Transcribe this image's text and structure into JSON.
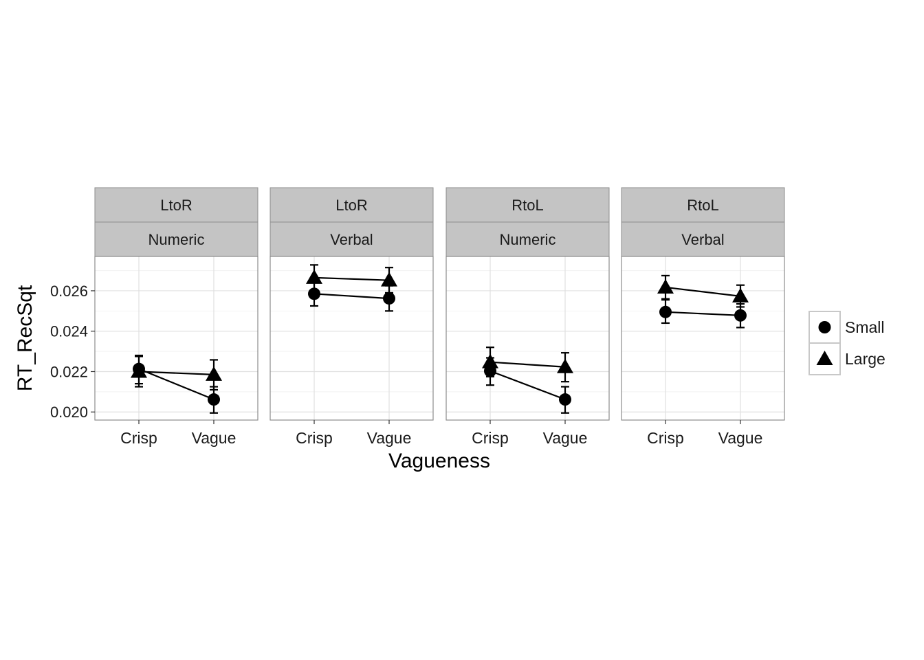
{
  "chart_data": {
    "type": "line",
    "xlabel": "Vagueness",
    "ylabel": "RT_RecSqt",
    "x_categories": [
      "Crisp",
      "Vague"
    ],
    "ylim": [
      0.0196,
      0.0277
    ],
    "y_ticks": [
      0.02,
      0.022,
      0.024,
      0.026
    ],
    "y_tick_labels": [
      "0.020",
      "0.022",
      "0.024",
      "0.026"
    ],
    "grid": true,
    "legend": {
      "position": "right",
      "entries": [
        {
          "name": "Small",
          "shape": "circle"
        },
        {
          "name": "Large",
          "shape": "triangle"
        }
      ]
    },
    "panels": [
      {
        "strip_top": "LtoR",
        "strip_bottom": "Numeric",
        "series": [
          {
            "name": "Small",
            "values": [
              0.02213,
              0.02062
            ],
            "err_low": [
              0.0214,
              0.01995
            ],
            "err_high": [
              0.02275,
              0.02125
            ]
          },
          {
            "name": "Large",
            "values": [
              0.022,
              0.02185
            ],
            "err_low": [
              0.02125,
              0.0211
            ],
            "err_high": [
              0.0228,
              0.02258
            ]
          }
        ]
      },
      {
        "strip_top": "LtoR",
        "strip_bottom": "Verbal",
        "series": [
          {
            "name": "Small",
            "values": [
              0.02585,
              0.02562
            ],
            "err_low": [
              0.02525,
              0.025
            ],
            "err_high": [
              0.0265,
              0.02625
            ]
          },
          {
            "name": "Large",
            "values": [
              0.02665,
              0.02652
            ],
            "err_low": [
              0.026,
              0.0259
            ],
            "err_high": [
              0.02728,
              0.02715
            ]
          }
        ]
      },
      {
        "strip_top": "RtoL",
        "strip_bottom": "Numeric",
        "series": [
          {
            "name": "Small",
            "values": [
              0.02203,
              0.02062
            ],
            "err_low": [
              0.02133,
              0.01995
            ],
            "err_high": [
              0.02268,
              0.02125
            ]
          },
          {
            "name": "Large",
            "values": [
              0.02247,
              0.02223
            ],
            "err_low": [
              0.02175,
              0.0215
            ],
            "err_high": [
              0.0232,
              0.02293
            ]
          }
        ]
      },
      {
        "strip_top": "RtoL",
        "strip_bottom": "Verbal",
        "series": [
          {
            "name": "Small",
            "values": [
              0.02495,
              0.02478
            ],
            "err_low": [
              0.0244,
              0.02418
            ],
            "err_high": [
              0.02555,
              0.02535
            ]
          },
          {
            "name": "Large",
            "values": [
              0.02617,
              0.02573
            ],
            "err_low": [
              0.0256,
              0.0252
            ],
            "err_high": [
              0.02675,
              0.02628
            ]
          }
        ]
      }
    ]
  }
}
